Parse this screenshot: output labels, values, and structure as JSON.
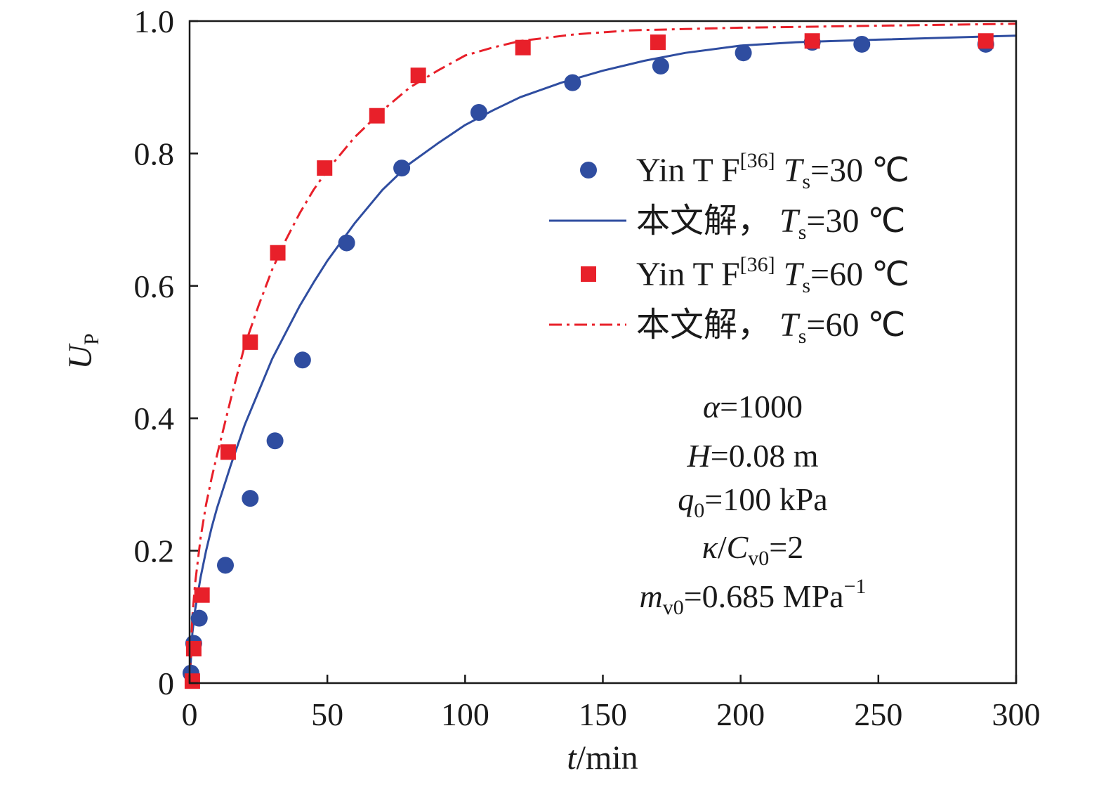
{
  "chart_data": {
    "type": "scatter",
    "xlabel": {
      "var": "t",
      "unit": "/min"
    },
    "ylabel": {
      "var": "U",
      "sub": "P"
    },
    "xlim": [
      0,
      300
    ],
    "ylim": [
      0,
      1.0
    ],
    "x_ticks": [
      0,
      50,
      100,
      150,
      200,
      250,
      300
    ],
    "x_tick_labels": [
      "0",
      "50",
      "100",
      "150",
      "200",
      "250",
      "300"
    ],
    "y_ticks": [
      0,
      0.2,
      0.4,
      0.6,
      0.8,
      1.0
    ],
    "y_tick_labels": [
      "0",
      "0.2",
      "0.4",
      "0.6",
      "0.8",
      "1.0"
    ],
    "grid": false,
    "legend_position": "right-center",
    "series": [
      {
        "legend_parts": {
          "prefix": "Yin T F",
          "ref": "[36]",
          "var": "T",
          "sub": "s",
          "rest": "=30 ℃"
        },
        "kind": "markers",
        "marker": "circle",
        "color": "#2f4da0",
        "x": [
          0.5,
          1.5,
          3.5,
          13,
          22,
          31,
          41,
          57,
          77,
          105,
          139,
          171,
          201,
          226,
          244,
          289
        ],
        "y": [
          0.015,
          0.06,
          0.098,
          0.178,
          0.279,
          0.366,
          0.488,
          0.665,
          0.778,
          0.862,
          0.907,
          0.932,
          0.952,
          0.968,
          0.965,
          0.965
        ]
      },
      {
        "legend_parts": {
          "prefix": "本文解，",
          "var": "T",
          "sub": "s",
          "rest": "=30 ℃"
        },
        "kind": "line",
        "dash": "solid",
        "color": "#2f4da0",
        "x": [
          0,
          1,
          2,
          4,
          6,
          8,
          10,
          15,
          20,
          25,
          30,
          35,
          40,
          45,
          50,
          60,
          70,
          80,
          90,
          100,
          110,
          120,
          135,
          150,
          165,
          180,
          200,
          220,
          250,
          300
        ],
        "y": [
          0,
          0.075,
          0.11,
          0.16,
          0.2,
          0.235,
          0.265,
          0.33,
          0.39,
          0.44,
          0.49,
          0.53,
          0.57,
          0.605,
          0.638,
          0.695,
          0.745,
          0.785,
          0.815,
          0.843,
          0.865,
          0.885,
          0.907,
          0.925,
          0.94,
          0.952,
          0.963,
          0.968,
          0.972,
          0.978
        ]
      },
      {
        "legend_parts": {
          "prefix": "Yin T F",
          "ref": "[36]",
          "var": "T",
          "sub": "s",
          "rest": "=60 ℃"
        },
        "kind": "markers",
        "marker": "square",
        "color": "#e8202a",
        "x": [
          1,
          1.5,
          4.5,
          14,
          22,
          32,
          49,
          68,
          83,
          121,
          170,
          226,
          289
        ],
        "y": [
          0.003,
          0.052,
          0.133,
          0.349,
          0.515,
          0.65,
          0.778,
          0.857,
          0.918,
          0.96,
          0.968,
          0.97,
          0.97
        ]
      },
      {
        "legend_parts": {
          "prefix": "本文解，",
          "var": "T",
          "sub": "s",
          "rest": "=60 ℃"
        },
        "kind": "line",
        "dash": "dashdot",
        "color": "#e8202a",
        "x": [
          0,
          1,
          2,
          4,
          6,
          8,
          10,
          15,
          20,
          25,
          30,
          35,
          40,
          45,
          50,
          60,
          70,
          80,
          90,
          100,
          110,
          120,
          140,
          160,
          180,
          200,
          250,
          300
        ],
        "y": [
          0,
          0.1,
          0.15,
          0.22,
          0.27,
          0.31,
          0.345,
          0.43,
          0.51,
          0.57,
          0.625,
          0.67,
          0.71,
          0.745,
          0.775,
          0.825,
          0.865,
          0.9,
          0.925,
          0.948,
          0.96,
          0.97,
          0.98,
          0.986,
          0.988,
          0.99,
          0.993,
          0.996
        ]
      }
    ],
    "annotations": [
      {
        "var": "α",
        "rest": "=1000"
      },
      {
        "var": "H",
        "rest": "=0.08 m"
      },
      {
        "var": "q",
        "sub": "0",
        "rest": "=100 kPa"
      },
      {
        "var": "κ",
        "mid": "/",
        "var2": "C",
        "sub": "v0",
        "rest": "=2"
      },
      {
        "var": "m",
        "sub": "v0",
        "rest": "=0.685 MPa",
        "sup": "−1"
      }
    ]
  }
}
